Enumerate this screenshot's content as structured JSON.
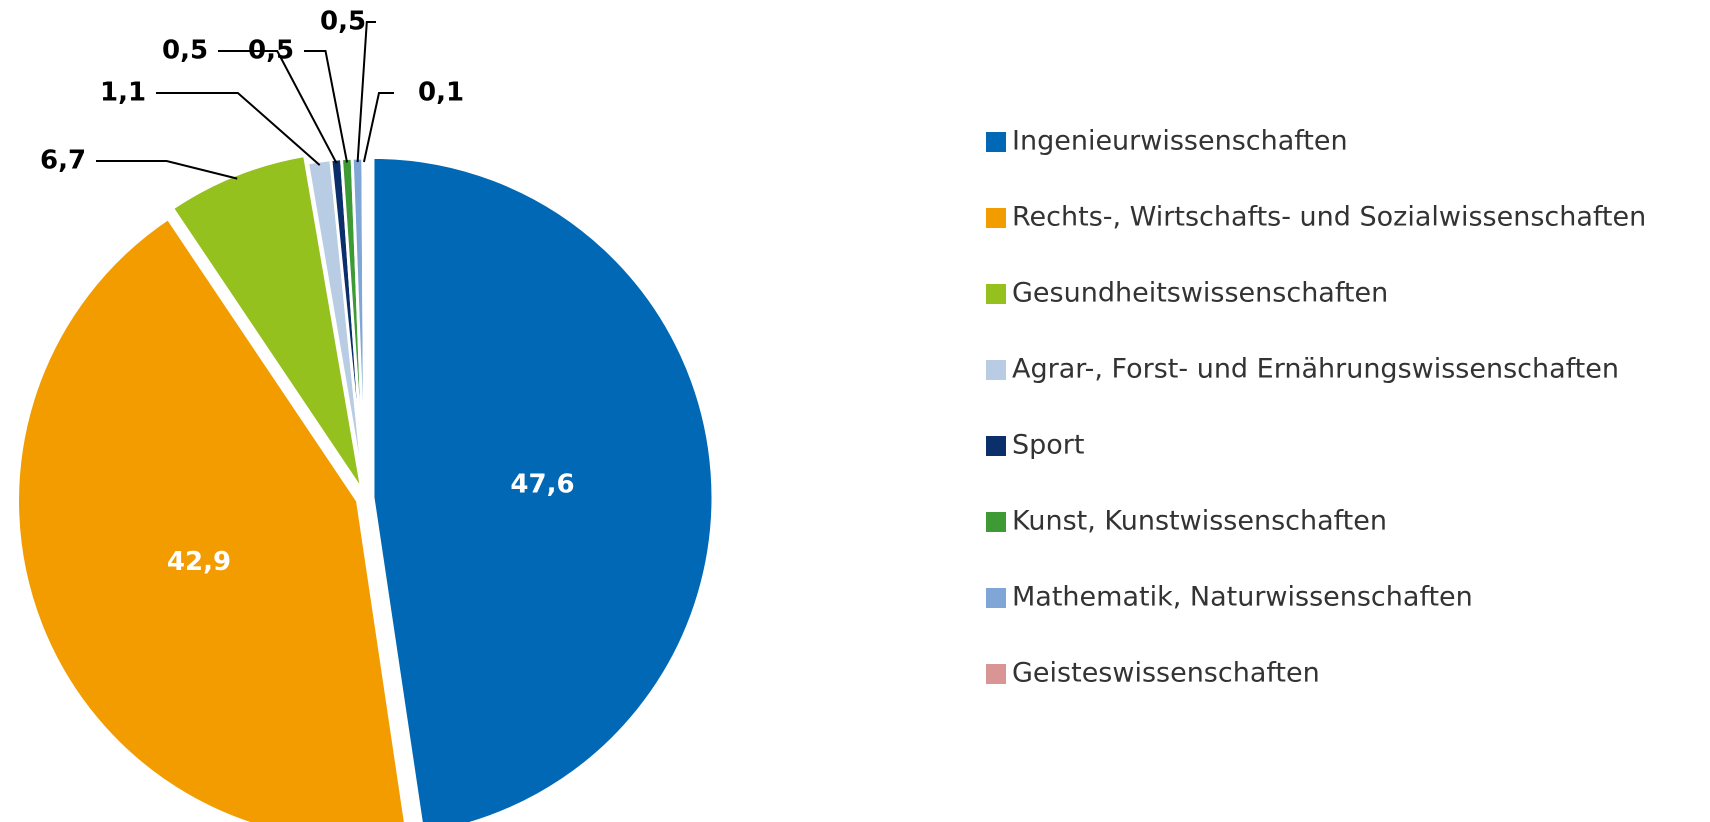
{
  "chart_data": {
    "type": "pie",
    "categories": [
      "Ingenieurwissenschaften",
      "Rechts-, Wirtschafts- und Sozialwissenschaften",
      "Gesundheitswissenschaften",
      "Agrar-, Forst- und Ernährungswissenschaften",
      "Sport",
      "Kunst, Kunstwissenschaften",
      "Mathematik, Naturwissenschaften",
      "Geisteswissenschaften"
    ],
    "values": [
      47.6,
      42.9,
      6.7,
      1.1,
      0.5,
      0.5,
      0.5,
      0.1
    ],
    "value_labels": [
      "47,6",
      "42,9",
      "6,7",
      "1,1",
      "0,5",
      "0,5",
      "0,5",
      "0,1"
    ],
    "colors": [
      "#0068b4",
      "#f39c00",
      "#95c11f",
      "#b8cce4",
      "#0a2f6b",
      "#3d9a34",
      "#7fa6d6",
      "#d99594"
    ],
    "legend": "right"
  }
}
